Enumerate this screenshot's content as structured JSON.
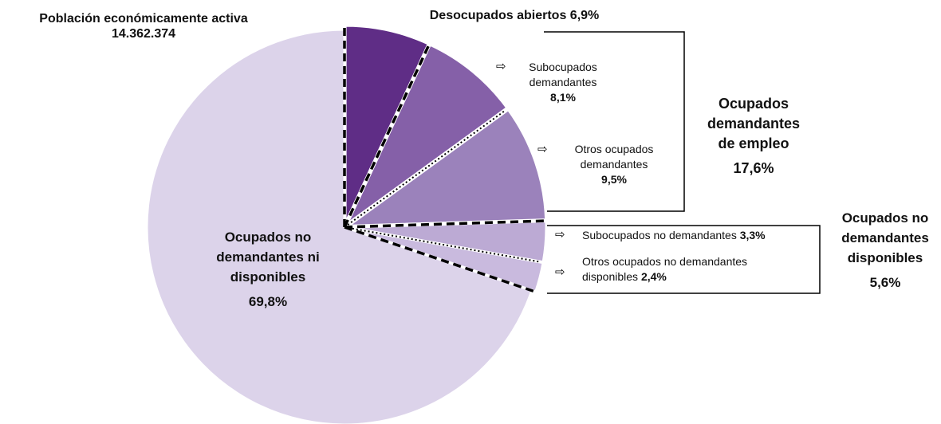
{
  "chart_data": {
    "type": "pie",
    "title": "Población económicamente activa",
    "total": 14362374,
    "total_label": "14.362.374",
    "categories": [
      "Desocupados abiertos",
      "Subocupados demandantes",
      "Otros ocupados demandantes",
      "Subocupados no demandantes",
      "Otros ocupados no demandantes disponibles",
      "Ocupados no demandantes ni disponibles"
    ],
    "values": [
      6.9,
      8.1,
      9.5,
      3.3,
      2.4,
      69.8
    ],
    "value_labels": [
      "6,9%",
      "8,1%",
      "9,5%",
      "3,3%",
      "2,4%",
      "69,8%"
    ],
    "colors": [
      "#5f2d86",
      "#8560a8",
      "#9b82bb",
      "#bcaad4",
      "#c9bade",
      "#dcd3ea"
    ],
    "groups": [
      {
        "label": "Ocupados demandantes de empleo",
        "value": 17.6,
        "value_label": "17,6%"
      },
      {
        "label": "Ocupados no demandantes disponibles",
        "value": 5.6,
        "value_label": "5,6%"
      }
    ]
  }
}
